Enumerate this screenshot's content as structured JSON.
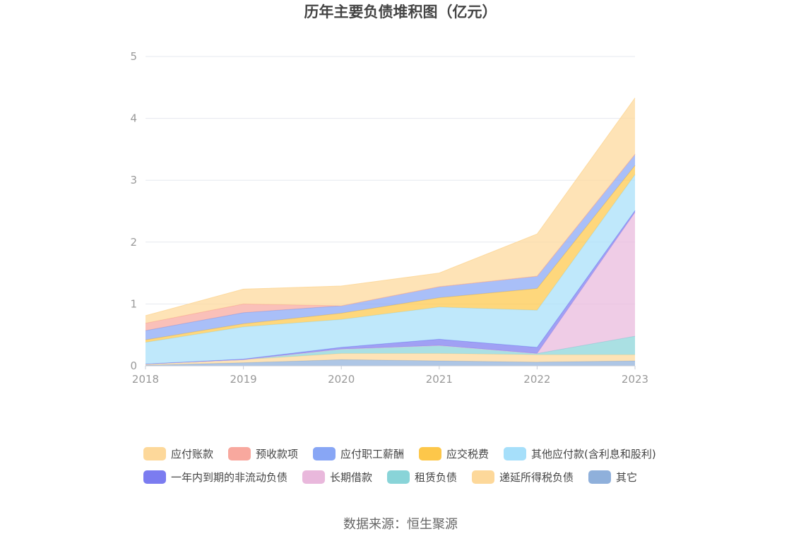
{
  "chart_data": {
    "type": "area",
    "title": "历年主要负债堆积图（亿元）",
    "x": [
      "2018",
      "2019",
      "2020",
      "2021",
      "2022",
      "2023"
    ],
    "ylim": [
      0,
      5
    ],
    "yticks": [
      "0",
      "1",
      "2",
      "3",
      "4",
      "5"
    ],
    "grid": true,
    "legend_position": "bottom",
    "series": [
      {
        "name": "其它",
        "color": "#8fb0db",
        "values": [
          0.01,
          0.05,
          0.1,
          0.08,
          0.06,
          0.08
        ]
      },
      {
        "name": "递延所得税负债",
        "color": "#fdd89a",
        "values": [
          0.02,
          0.05,
          0.1,
          0.12,
          0.12,
          0.1
        ]
      },
      {
        "name": "租赁负债",
        "color": "#89d4d8",
        "values": [
          0.0,
          0.0,
          0.07,
          0.13,
          0.02,
          0.3
        ]
      },
      {
        "name": "长期借款",
        "color": "#e9b8dc",
        "values": [
          0.0,
          0.0,
          0.0,
          0.0,
          0.0,
          2.0
        ]
      },
      {
        "name": "一年内到期的非流动负债",
        "color": "#7b7cf0",
        "values": [
          0.0,
          0.01,
          0.03,
          0.1,
          0.1,
          0.03
        ]
      },
      {
        "name": "其他应付款(含利息和股利)",
        "color": "#a6dffa",
        "values": [
          0.35,
          0.52,
          0.45,
          0.52,
          0.6,
          0.58
        ]
      },
      {
        "name": "应交税费",
        "color": "#fdc74a",
        "values": [
          0.04,
          0.05,
          0.1,
          0.15,
          0.35,
          0.15
        ]
      },
      {
        "name": "应付职工薪酬",
        "color": "#88a6f5",
        "values": [
          0.15,
          0.18,
          0.12,
          0.18,
          0.2,
          0.18
        ]
      },
      {
        "name": "预收款项",
        "color": "#f8a89e",
        "values": [
          0.12,
          0.14,
          0.0,
          0.0,
          0.0,
          0.0
        ]
      },
      {
        "name": "应付账款",
        "color": "#fdd89a",
        "values": [
          0.12,
          0.24,
          0.32,
          0.22,
          0.68,
          0.91
        ]
      }
    ]
  },
  "legend": {
    "row1": [
      "应付账款",
      "预收款项",
      "应付职工薪酬",
      "应交税费",
      "其他应付款(含利息和股利)"
    ],
    "row2": [
      "一年内到期的非流动负债",
      "长期借款",
      "租赁负债",
      "递延所得税负债",
      "其它"
    ]
  },
  "source": "数据来源：恒生聚源"
}
